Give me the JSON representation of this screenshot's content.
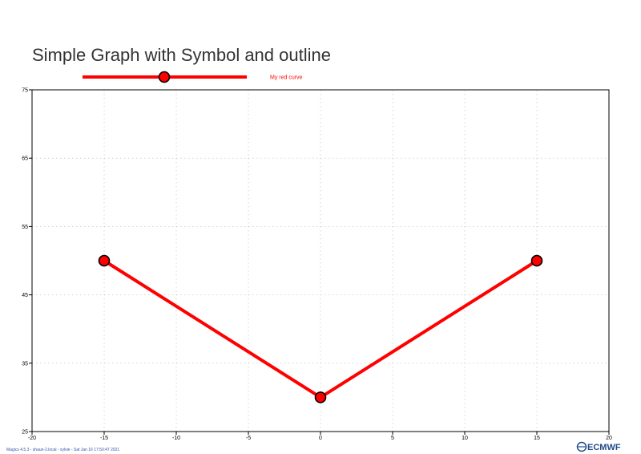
{
  "chart_data": {
    "type": "line",
    "title": "Simple Graph with Symbol and outline",
    "xlim": [
      -20,
      20
    ],
    "ylim": [
      25,
      75
    ],
    "x_ticks": [
      -20,
      -15,
      -10,
      -5,
      0,
      5,
      10,
      15,
      20
    ],
    "y_ticks": [
      25,
      35,
      45,
      55,
      65,
      75
    ],
    "grid": true,
    "legend_position": "top",
    "series": [
      {
        "name": "My red curve",
        "x": [
          -15,
          0,
          15
        ],
        "y": [
          50,
          30,
          50
        ],
        "color": "#ff0000",
        "marker": "circle",
        "marker_outline": "#000000"
      }
    ]
  },
  "footer": {
    "credit": "Magics 4.5.3 - shaun-2.local - sylvie - Sat Jan 16 17:50:47 2021",
    "brand": "ECMWF",
    "brand_color": "#1f4a8c"
  }
}
